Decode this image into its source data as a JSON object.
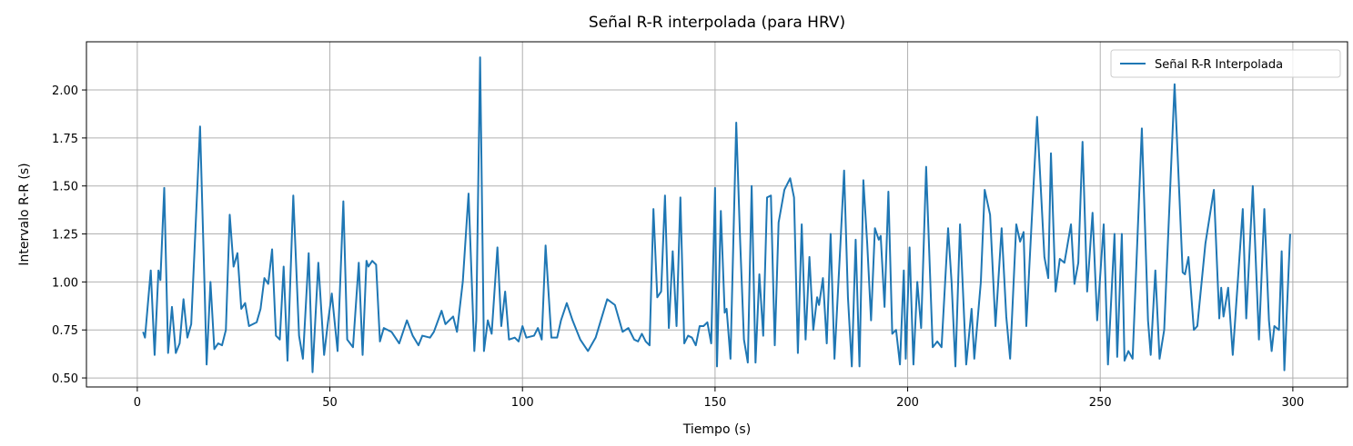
{
  "chart_data": {
    "type": "line",
    "title": "Señal R-R interpolada (para HRV)",
    "x_label": "Tiempo (s)",
    "y_label": "Intervalo R-R (s)",
    "x": [
      1.5,
      2,
      3.5,
      4.5,
      5.5,
      6,
      7,
      8,
      9,
      10,
      11,
      12,
      13,
      14,
      16.3,
      17.5,
      18,
      19,
      20,
      21,
      22,
      23,
      24,
      25,
      26,
      27,
      28,
      29,
      31,
      32,
      33,
      34,
      35,
      36,
      37,
      38,
      39,
      40.5,
      42,
      43,
      44.5,
      45.5,
      47,
      48.5,
      49.5,
      50.5,
      52,
      53.5,
      54.5,
      56,
      57.5,
      58.5,
      59.5,
      60,
      61,
      62,
      63,
      64,
      66,
      68,
      70,
      71.5,
      73,
      74,
      76,
      77,
      79,
      80,
      82,
      83,
      84.5,
      86,
      87.5,
      88,
      89,
      90,
      91,
      92,
      93.5,
      94.5,
      95.5,
      96.5,
      98,
      99,
      100,
      101,
      103,
      104,
      105,
      106,
      107.5,
      109,
      110,
      111.5,
      113,
      115,
      117,
      119,
      122,
      124,
      126,
      127.5,
      129,
      130,
      131,
      132,
      133,
      134,
      135,
      136,
      137,
      138,
      139,
      140,
      141,
      142,
      143,
      144,
      145,
      146,
      147,
      148,
      149,
      150,
      150.5,
      151.5,
      152.5,
      153,
      154,
      155.5,
      156.5,
      157.5,
      158.5,
      159.5,
      160.5,
      161.5,
      162.5,
      163.5,
      164.5,
      165.5,
      166.5,
      168,
      169.5,
      170.5,
      171.5,
      172.5,
      173.5,
      174.5,
      175.5,
      176.5,
      177,
      178,
      179,
      180,
      181,
      182.5,
      183.5,
      184.5,
      185.5,
      186.5,
      187.5,
      188.5,
      189.5,
      190.5,
      191.5,
      192.5,
      193,
      194,
      195,
      196,
      197,
      198,
      199,
      199.5,
      200.5,
      201.5,
      202.5,
      203.5,
      204.8,
      206.5,
      207.7,
      208.8,
      210.5,
      211.4,
      212.4,
      213.6,
      215.2,
      216.6,
      217.3,
      219,
      220,
      221.4,
      222.8,
      224.4,
      225.6,
      226.6,
      228.2,
      229.2,
      230.1,
      230.8,
      233.6,
      235.5,
      236.5,
      237.2,
      238.4,
      239.5,
      240.7,
      242.4,
      243.3,
      244.3,
      245.4,
      246.6,
      248,
      249.2,
      250.9,
      252,
      253.7,
      254.4,
      255.6,
      256.3,
      257.3,
      258.4,
      260.8,
      262.4,
      263.1,
      264.3,
      265.4,
      266.6,
      269.3,
      271.4,
      272,
      272.9,
      274.3,
      275.2,
      277.3,
      279.5,
      280.9,
      281.4,
      282,
      283.2,
      284.4,
      287,
      287.9,
      289.6,
      291.2,
      292.6,
      293.8,
      294.5,
      295.2,
      296.4,
      297.1,
      297.8,
      299.3
    ],
    "series": [
      {
        "name": "Señal R-R Interpolada",
        "color": "#1f77b4",
        "values": [
          0.74,
          0.71,
          1.06,
          0.62,
          1.06,
          1.01,
          1.49,
          0.63,
          0.87,
          0.63,
          0.68,
          0.91,
          0.71,
          0.78,
          1.81,
          0.95,
          0.57,
          1.0,
          0.65,
          0.68,
          0.67,
          0.75,
          1.35,
          1.08,
          1.15,
          0.86,
          0.89,
          0.77,
          0.79,
          0.86,
          1.02,
          0.99,
          1.17,
          0.72,
          0.7,
          1.08,
          0.59,
          1.45,
          0.72,
          0.6,
          1.15,
          0.53,
          1.1,
          0.62,
          0.79,
          0.94,
          0.64,
          1.42,
          0.7,
          0.66,
          1.1,
          0.62,
          1.11,
          1.08,
          1.11,
          1.09,
          0.69,
          0.76,
          0.74,
          0.68,
          0.8,
          0.72,
          0.67,
          0.72,
          0.71,
          0.74,
          0.85,
          0.78,
          0.82,
          0.74,
          1.0,
          1.46,
          0.64,
          0.8,
          2.17,
          0.64,
          0.8,
          0.73,
          1.18,
          0.77,
          0.95,
          0.7,
          0.71,
          0.69,
          0.77,
          0.71,
          0.72,
          0.76,
          0.7,
          1.19,
          0.71,
          0.71,
          0.8,
          0.89,
          0.8,
          0.7,
          0.64,
          0.71,
          0.91,
          0.88,
          0.74,
          0.76,
          0.7,
          0.69,
          0.73,
          0.69,
          0.67,
          1.38,
          0.92,
          0.95,
          1.45,
          0.76,
          1.16,
          0.77,
          1.44,
          0.68,
          0.72,
          0.71,
          0.67,
          0.77,
          0.77,
          0.79,
          0.68,
          1.49,
          0.56,
          1.37,
          0.84,
          0.86,
          0.6,
          1.83,
          1.22,
          0.7,
          0.58,
          1.5,
          0.58,
          1.04,
          0.72,
          1.44,
          1.45,
          0.67,
          1.31,
          1.48,
          1.54,
          1.44,
          0.63,
          1.3,
          0.7,
          1.13,
          0.75,
          0.92,
          0.88,
          1.02,
          0.68,
          1.25,
          0.6,
          1.18,
          1.58,
          0.92,
          0.56,
          1.22,
          0.56,
          1.53,
          1.2,
          0.8,
          1.28,
          1.22,
          1.24,
          0.87,
          1.47,
          0.73,
          0.75,
          0.57,
          1.06,
          0.6,
          1.18,
          0.57,
          1.0,
          0.76,
          1.6,
          0.66,
          0.69,
          0.66,
          1.28,
          1.0,
          0.56,
          1.3,
          0.57,
          0.86,
          0.6,
          1.0,
          1.48,
          1.35,
          0.77,
          1.28,
          0.82,
          0.6,
          1.3,
          1.21,
          1.26,
          0.77,
          1.86,
          1.13,
          1.02,
          1.67,
          0.95,
          1.12,
          1.1,
          1.3,
          0.99,
          1.1,
          1.73,
          0.95,
          1.36,
          0.8,
          1.3,
          0.57,
          1.25,
          0.61,
          1.25,
          0.59,
          0.64,
          0.6,
          1.8,
          0.8,
          0.62,
          1.06,
          0.6,
          0.75,
          2.03,
          1.05,
          1.04,
          1.13,
          0.75,
          0.77,
          1.2,
          1.48,
          0.81,
          0.97,
          0.82,
          0.97,
          0.62,
          1.38,
          0.81,
          1.5,
          0.7,
          1.38,
          0.8,
          0.64,
          0.77,
          0.75,
          1.16,
          0.54,
          1.25
        ]
      }
    ],
    "xlim": [
      -13.2,
      314.2
    ],
    "ylim": [
      0.453,
      2.251
    ],
    "xticks": [
      0,
      50,
      100,
      150,
      200,
      250,
      300
    ],
    "yticks": [
      {
        "value": 0.5,
        "label": "0.50"
      },
      {
        "value": 0.75,
        "label": "0.75"
      },
      {
        "value": 1.0,
        "label": "1.00"
      },
      {
        "value": 1.25,
        "label": "1.25"
      },
      {
        "value": 1.5,
        "label": "1.50"
      },
      {
        "value": 1.75,
        "label": "1.75"
      },
      {
        "value": 2.0,
        "label": "2.00"
      }
    ],
    "grid": true,
    "legend": "upper-right"
  }
}
